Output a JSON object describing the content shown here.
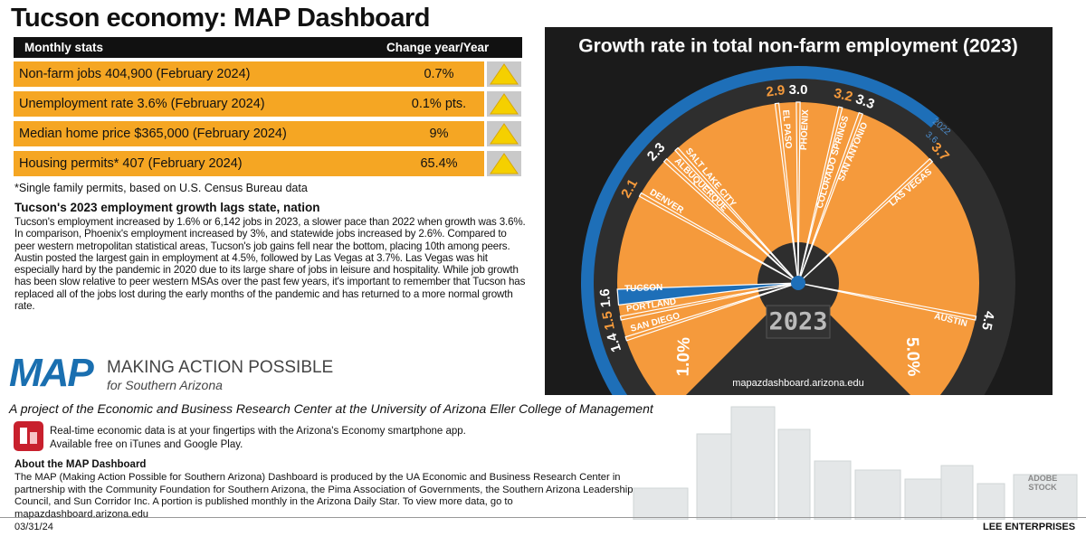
{
  "title": "Tucson economy: MAP Dashboard",
  "stats": {
    "header": [
      "Monthly stats",
      "Change year/Year"
    ],
    "rows": [
      [
        "Non-farm jobs 404,900 (February 2024)",
        "0.7%"
      ],
      [
        "Unemployment rate 3.6% (February 2024)",
        "0.1% pts."
      ],
      [
        "Median home price $365,000 (February 2024)",
        "9%"
      ],
      [
        "Housing permits* 407 (February 2024)",
        "65.4%"
      ]
    ]
  },
  "footnote": "*Single family permits, based on U.S. Census Bureau data",
  "article": {
    "headline": "Tucson's 2023 employment growth lags state, nation",
    "body": "Tucson's employment increased by 1.6% or 6,142 jobs in 2023, a slower pace than 2022 when growth was 3.6%. In comparison, Phoenix's employment increased by 3%, and statewide jobs increased by 2.6%. Compared to peer western metropolitan statistical areas, Tucson's job gains fell near the bottom, placing 10th among peers. Austin posted the largest gain in employment at 4.5%, followed by Las Vegas at 3.7%. Las Vegas was hit especially hard by the pandemic in 2020 due to its large share of jobs in leisure and hospitality. While job growth has been slow relative to peer western MSAs over the past few years, it's important to remember that Tucson has replaced all of the jobs lost during the early months of the pandemic and has returned to a more normal growth rate."
  },
  "logo": {
    "mark": "MAP",
    "name": "MAKING ACTION POSSIBLE",
    "sub": "for Southern Arizona"
  },
  "project": "A project of the Economic and Business Research Center at the University of Arizona Eller College of Management",
  "app": [
    "Real-time economic data is at your fingertips with the Arizona's Economy smartphone app.",
    "Available free on iTunes and Google Play."
  ],
  "about": {
    "heading": "About the MAP Dashboard",
    "body": "The MAP (Making Action Possible for Southern Arizona) Dashboard is produced by the UA Economic and Business Research Center in partnership with the Community Foundation for Southern Arizona, the Pima Association of Governments, the Southern Arizona Leadership Council, and Sun Corridor Inc. A portion is published monthly in the Arizona Daily Star. To view more data, go to mapazdashboard.arizona.edu"
  },
  "stock": "ADOBE STOCK",
  "date": "03/31/24",
  "credit": "LEE ENTERPRISES",
  "chart_data": {
    "type": "gauge",
    "title": "Growth rate in total non-farm employment (2023)",
    "year_display": "2023",
    "url": "mapazdashboard.arizona.edu",
    "categories": [
      "SAN DIEGO",
      "PORTLAND",
      "TUCSON",
      "DENVER",
      "ALBUQUERQUE",
      "SALT LAKE CITY",
      "EL PASO",
      "PHOENIX",
      "COLORADO SPRINGS",
      "SAN ANTONIO",
      "LAS VEGAS",
      "AUSTIN"
    ],
    "values": [
      1.4,
      1.5,
      1.6,
      2.1,
      2.3,
      2.3,
      2.9,
      3.0,
      3.2,
      3.3,
      3.7,
      4.5
    ],
    "value_labels": [
      "1.4",
      "1.5",
      "1.6",
      "2.1",
      "2.3",
      null,
      "2.9",
      "3.0",
      "3.2",
      "3.3",
      "3.7",
      "4.5"
    ],
    "colors": [
      "#f59a3c",
      "#f59a3c",
      "#1e6fb8",
      "#f59a3c",
      "#f59a3c",
      "#f59a3c",
      "#f59a3c",
      "#f59a3c",
      "#f59a3c",
      "#f59a3c",
      "#f59a3c",
      "#f59a3c"
    ],
    "label_colors": [
      "#ffffff",
      "#f59a3c",
      "#ffffff",
      "#f59a3c",
      "#ffffff",
      "#ffffff",
      "#f59a3c",
      "#ffffff",
      "#f59a3c",
      "#ffffff",
      "#f59a3c",
      "#ffffff"
    ],
    "fan_color": "#f59a3c",
    "previous": {
      "label": "2022",
      "value": 3.6,
      "color": "#1e6fb8"
    },
    "xlim": [
      1.0,
      5.0
    ],
    "xticks": [
      {
        "value": 1.0,
        "label": "1.0%"
      },
      {
        "value": 5.0,
        "label": "5.0%"
      }
    ]
  }
}
